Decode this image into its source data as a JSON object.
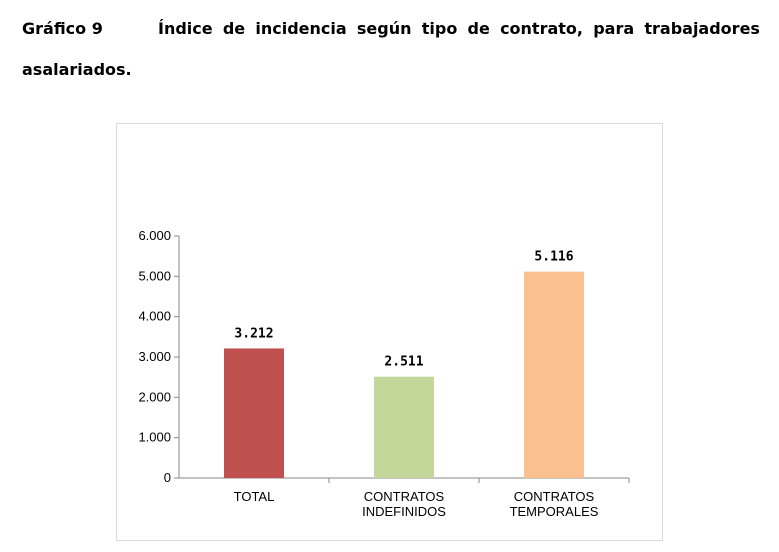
{
  "caption": {
    "label": "Gráfico 9",
    "line1": "Índice de incidencia según tipo de contrato, para trabajadores",
    "line2": "asalariados."
  },
  "chart_data": {
    "type": "bar",
    "title": "",
    "xlabel": "",
    "ylabel": "",
    "categories": [
      [
        "TOTAL"
      ],
      [
        "CONTRATOS",
        "INDEFINIDOS"
      ],
      [
        "CONTRATOS",
        "TEMPORALES"
      ]
    ],
    "values": [
      3212,
      2511,
      5116
    ],
    "value_labels": [
      "3.212",
      "2.511",
      "5.116"
    ],
    "colors": [
      "#c0504d",
      "#c4d79b",
      "#fac090"
    ],
    "ylim": [
      0,
      6000
    ],
    "yticks": [
      0,
      1000,
      2000,
      3000,
      4000,
      5000,
      6000
    ],
    "ytick_labels": [
      "0",
      "1.000",
      "2.000",
      "3.000",
      "4.000",
      "5.000",
      "6.000"
    ],
    "grid": false,
    "legend": "none"
  }
}
